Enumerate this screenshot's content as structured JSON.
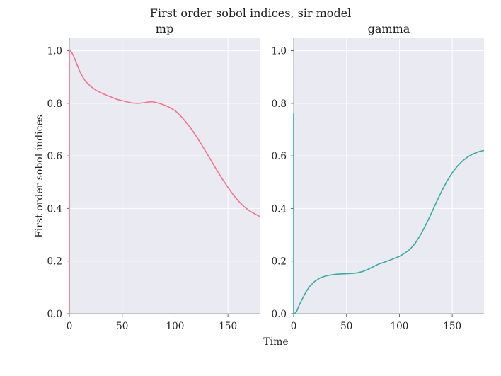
{
  "chart_data": {
    "type": "line",
    "suptitle": "First order sobol indices, sir model",
    "xlabel": "Time",
    "ylabel": "First order sobol indices",
    "xlim": [
      0,
      180
    ],
    "ylim": [
      0,
      1.05
    ],
    "xticks": [
      0,
      50,
      100,
      150
    ],
    "yticks": [
      0.0,
      0.2,
      0.4,
      0.6,
      0.8,
      1.0
    ],
    "xtick_labels": [
      "0",
      "50",
      "100",
      "150"
    ],
    "ytick_labels": [
      "0.0",
      "0.2",
      "0.4",
      "0.6",
      "0.8",
      "1.0"
    ],
    "grid": true,
    "background": "#EAEAF2",
    "panels": [
      {
        "title": "mp",
        "color": "#F77189",
        "series": [
          {
            "x": [
              0,
              0,
              1,
              2,
              4,
              6,
              8,
              10,
              12,
              15,
              20,
              25,
              30,
              35,
              40,
              45,
              50,
              55,
              60,
              65,
              70,
              75,
              78,
              80,
              85,
              90,
              95,
              100,
              105,
              110,
              115,
              120,
              125,
              130,
              135,
              140,
              145,
              150,
              155,
              160,
              165,
              170,
              175,
              180
            ],
            "y": [
              0.0,
              1.0,
              1.0,
              0.995,
              0.98,
              0.96,
              0.94,
              0.92,
              0.905,
              0.885,
              0.865,
              0.85,
              0.84,
              0.831,
              0.823,
              0.815,
              0.81,
              0.805,
              0.801,
              0.8,
              0.802,
              0.805,
              0.806,
              0.805,
              0.8,
              0.793,
              0.784,
              0.772,
              0.753,
              0.73,
              0.704,
              0.675,
              0.643,
              0.61,
              0.576,
              0.542,
              0.51,
              0.48,
              0.452,
              0.428,
              0.408,
              0.392,
              0.38,
              0.37
            ]
          }
        ]
      },
      {
        "title": "gamma",
        "color": "#36ADA4",
        "series": [
          {
            "x": [
              0,
              0,
              0,
              1,
              3,
              5,
              8,
              12,
              15,
              20,
              25,
              30,
              35,
              40,
              45,
              50,
              55,
              60,
              65,
              70,
              75,
              80,
              85,
              90,
              95,
              100,
              105,
              110,
              115,
              120,
              125,
              130,
              135,
              140,
              145,
              150,
              155,
              160,
              165,
              170,
              175,
              180
            ],
            "y": [
              0.0,
              0.76,
              0.0,
              0.0,
              0.01,
              0.03,
              0.055,
              0.085,
              0.103,
              0.123,
              0.136,
              0.143,
              0.147,
              0.15,
              0.151,
              0.152,
              0.153,
              0.155,
              0.16,
              0.168,
              0.178,
              0.188,
              0.195,
              0.202,
              0.21,
              0.218,
              0.23,
              0.245,
              0.268,
              0.3,
              0.338,
              0.38,
              0.424,
              0.466,
              0.504,
              0.536,
              0.562,
              0.582,
              0.597,
              0.608,
              0.616,
              0.621
            ]
          }
        ]
      }
    ]
  }
}
